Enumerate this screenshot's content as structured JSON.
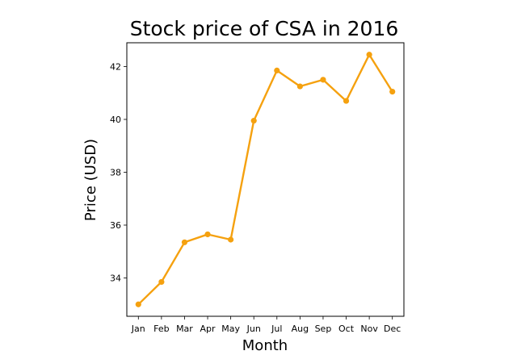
{
  "chart_data": {
    "type": "line",
    "title": "Stock price of CSA in 2016",
    "xlabel": "Month",
    "ylabel": "Price (USD)",
    "categories": [
      "Jan",
      "Feb",
      "Mar",
      "Apr",
      "May",
      "Jun",
      "Jul",
      "Aug",
      "Sep",
      "Oct",
      "Nov",
      "Dec"
    ],
    "series": [
      {
        "values": [
          33.0,
          33.85,
          35.35,
          35.65,
          35.45,
          39.95,
          41.85,
          41.25,
          41.5,
          40.7,
          42.45,
          41.05
        ],
        "color": "#f5a10f",
        "marker": "circle"
      }
    ],
    "ylim": [
      32.55,
      42.9
    ],
    "yticks": [
      34,
      36,
      38,
      40,
      42
    ],
    "grid": false,
    "legend": "none"
  }
}
